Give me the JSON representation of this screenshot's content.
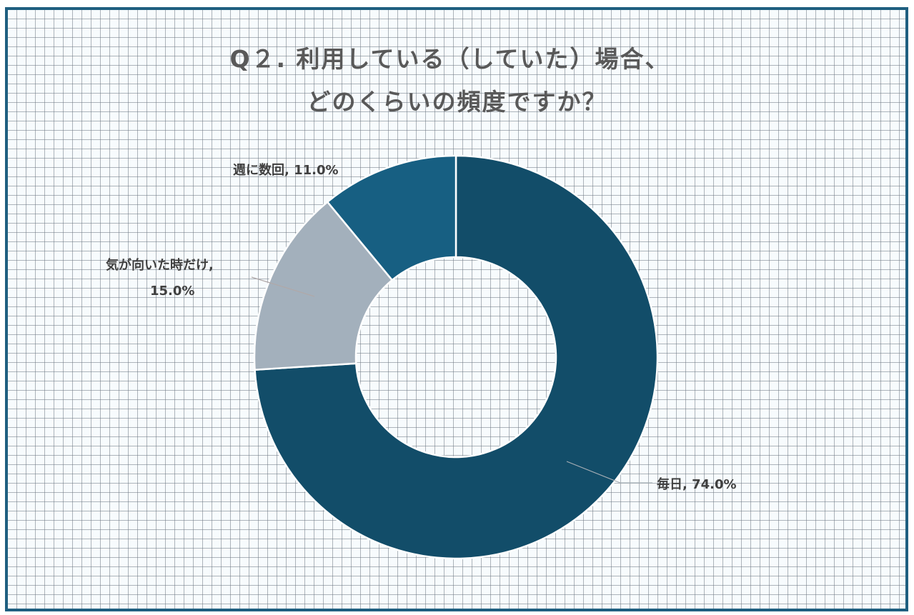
{
  "chart_data": {
    "type": "pie",
    "subtype": "donut",
    "title": "Q２. 利用している（していた）場合、どのくらいの頻度ですか？",
    "title_lines": [
      "Q２. 利用している（していた）場合、",
      "どのくらいの頻度ですか？"
    ],
    "categories": [
      "毎日",
      "気が向いた時だけ",
      "週に数回"
    ],
    "values": [
      74.0,
      15.0,
      11.0
    ],
    "unit": "%",
    "colors": [
      "#124d69",
      "#a3b0bc",
      "#175f82"
    ],
    "data_labels": [
      "毎日, 74.0%",
      "気が向いた時だけ, 15.0%",
      "週に数回, 11.0%"
    ],
    "legend": "none",
    "start_angle_deg": 0,
    "direction": "clockwise"
  },
  "labels": {
    "daily": "毎日, 74.0%",
    "mood_line1": "気が向いた時だけ,",
    "mood_line2": "15.0%",
    "weekly": "週に数回, 11.0%"
  },
  "style": {
    "border_color": "#1f5f80",
    "title_color": "#595959",
    "label_color": "#404040"
  }
}
